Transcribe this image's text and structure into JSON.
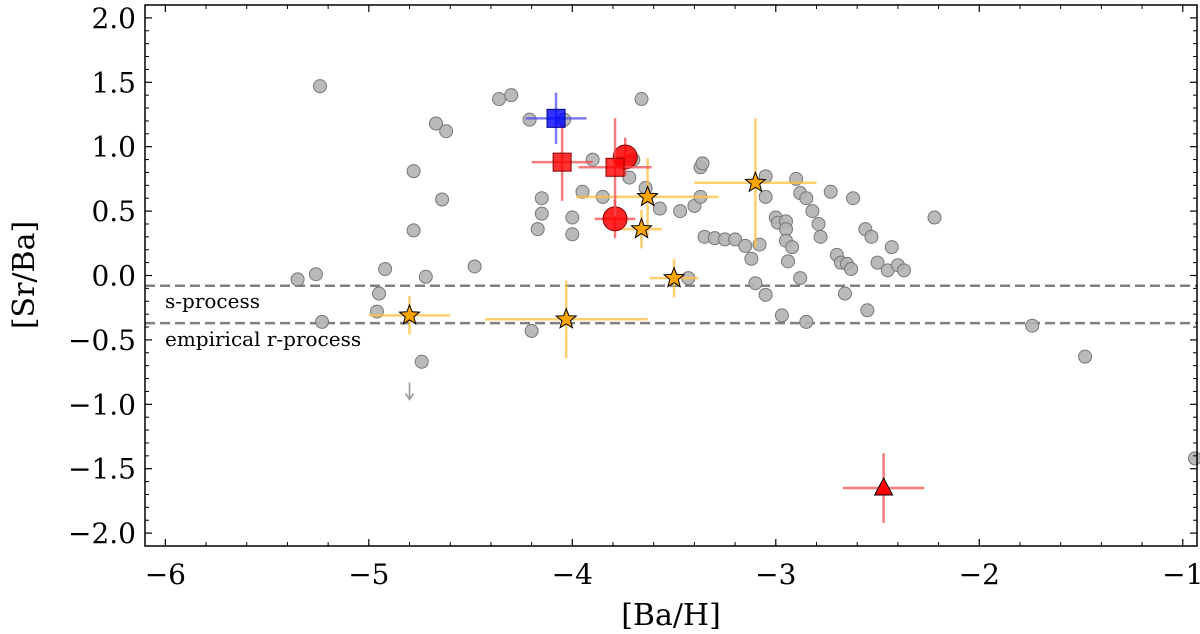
{
  "chart_data": {
    "type": "scatter",
    "xlabel": "[Ba/H]",
    "ylabel": "[Sr/Ba]",
    "xlim": [
      -6.1,
      -0.93
    ],
    "ylim": [
      -2.1,
      2.1
    ],
    "x_ticks": [
      -6,
      -5,
      -4,
      -3,
      -2,
      -1
    ],
    "x_tick_labels": [
      "−6",
      "−5",
      "−4",
      "−3",
      "−2",
      "−1"
    ],
    "y_ticks": [
      2.0,
      1.5,
      1.0,
      0.5,
      0.0,
      -0.5,
      -1.0,
      -1.5,
      -2.0
    ],
    "y_tick_labels": [
      "2.0",
      "1.5",
      "1.0",
      "0.5",
      "0.0",
      "−0.5",
      "−1.0",
      "−1.5",
      "−2.0"
    ],
    "reference_lines": [
      {
        "name": "s-process",
        "y": -0.08,
        "label": "s-process"
      },
      {
        "name": "empirical-r-process",
        "y": -0.37,
        "label": "empirical r-process"
      }
    ],
    "series": [
      {
        "name": "literature",
        "marker": "circle",
        "color": "#b3b3b3",
        "points": [
          [
            -5.24,
            1.47
          ],
          [
            -5.35,
            -0.03
          ],
          [
            -5.26,
            0.01
          ],
          [
            -5.23,
            -0.36
          ],
          [
            -4.92,
            0.05
          ],
          [
            -4.95,
            -0.14
          ],
          [
            -4.96,
            -0.28
          ],
          [
            -4.78,
            0.81
          ],
          [
            -4.78,
            0.35
          ],
          [
            -4.72,
            -0.01
          ],
          [
            -4.74,
            -0.67
          ],
          [
            -4.67,
            1.18
          ],
          [
            -4.64,
            0.59
          ],
          [
            -4.62,
            1.12
          ],
          [
            -4.48,
            0.07
          ],
          [
            -4.36,
            1.37
          ],
          [
            -4.3,
            1.4
          ],
          [
            -4.21,
            1.21
          ],
          [
            -4.17,
            0.36
          ],
          [
            -4.15,
            0.6
          ],
          [
            -4.15,
            0.48
          ],
          [
            -4.04,
            1.21
          ],
          [
            -4.0,
            0.45
          ],
          [
            -4.0,
            0.32
          ],
          [
            -3.95,
            0.65
          ],
          [
            -3.9,
            0.9
          ],
          [
            -3.85,
            0.61
          ],
          [
            -3.72,
            0.76
          ],
          [
            -3.66,
            1.37
          ],
          [
            -3.64,
            0.68
          ],
          [
            -3.57,
            0.52
          ],
          [
            -3.47,
            0.5
          ],
          [
            -3.43,
            -0.02
          ],
          [
            -3.4,
            0.54
          ],
          [
            -3.37,
            0.84
          ],
          [
            -3.37,
            0.61
          ],
          [
            -3.36,
            0.87
          ],
          [
            -3.35,
            0.3
          ],
          [
            -3.3,
            0.29
          ],
          [
            -3.25,
            0.28
          ],
          [
            -3.2,
            0.28
          ],
          [
            -3.15,
            0.23
          ],
          [
            -3.12,
            0.13
          ],
          [
            -3.08,
            0.24
          ],
          [
            -3.05,
            0.77
          ],
          [
            -3.05,
            0.61
          ],
          [
            -3.0,
            0.45
          ],
          [
            -2.99,
            0.41
          ],
          [
            -2.95,
            0.42
          ],
          [
            -2.95,
            0.36
          ],
          [
            -2.95,
            0.27
          ],
          [
            -2.94,
            0.11
          ],
          [
            -2.92,
            0.22
          ],
          [
            -2.9,
            0.75
          ],
          [
            -2.88,
            0.64
          ],
          [
            -2.85,
            0.6
          ],
          [
            -2.82,
            0.5
          ],
          [
            -2.79,
            0.4
          ],
          [
            -2.78,
            0.3
          ],
          [
            -2.73,
            0.65
          ],
          [
            -2.7,
            0.16
          ],
          [
            -2.68,
            0.1
          ],
          [
            -2.65,
            0.09
          ],
          [
            -2.62,
            0.6
          ],
          [
            -2.56,
            0.36
          ],
          [
            -2.55,
            -0.27
          ],
          [
            -2.53,
            0.3
          ],
          [
            -2.5,
            0.1
          ],
          [
            -2.45,
            0.04
          ],
          [
            -2.43,
            0.22
          ],
          [
            -2.4,
            0.08
          ],
          [
            -2.37,
            0.04
          ],
          [
            -2.22,
            0.45
          ],
          [
            -3.1,
            -0.06
          ],
          [
            -3.05,
            -0.15
          ],
          [
            -2.97,
            -0.31
          ],
          [
            -2.85,
            -0.36
          ],
          [
            -2.88,
            -0.02
          ],
          [
            -2.66,
            -0.14
          ],
          [
            -2.63,
            0.05
          ],
          [
            -3.7,
            0.9
          ],
          [
            -4.2,
            -0.43
          ],
          [
            -1.74,
            -0.39
          ],
          [
            -1.48,
            -0.63
          ],
          [
            -0.94,
            -1.42
          ]
        ]
      },
      {
        "name": "orange-stars",
        "marker": "star",
        "color": "#ffa500",
        "points": [
          {
            "x": -4.8,
            "y": -0.31,
            "xerr": 0.2,
            "yerr": 0.15
          },
          {
            "x": -4.03,
            "y": -0.34,
            "xerr": 0.4,
            "yerr": 0.3
          },
          {
            "x": -3.5,
            "y": -0.02,
            "xerr": 0.12,
            "yerr": 0.15
          },
          {
            "x": -3.63,
            "y": 0.61,
            "xerr": 0.35,
            "yerr": 0.3
          },
          {
            "x": -3.66,
            "y": 0.36,
            "xerr": 0.1,
            "yerr": 0.15
          },
          {
            "x": -3.1,
            "y": 0.72,
            "xerr": 0.3,
            "yerr": 0.5
          }
        ]
      },
      {
        "name": "red-circles",
        "marker": "circle",
        "color": "#ff0000",
        "points": [
          {
            "x": -3.74,
            "y": 0.92,
            "xerr": 0.05,
            "yerr": 0.15
          },
          {
            "x": -3.79,
            "y": 0.44,
            "xerr": 0.1,
            "yerr": 0.15
          }
        ]
      },
      {
        "name": "red-squares",
        "marker": "square",
        "color": "#ff0000",
        "points": [
          {
            "x": -4.05,
            "y": 0.88,
            "xerr": 0.15,
            "yerr": 0.3
          },
          {
            "x": -3.79,
            "y": 0.84,
            "xerr": 0.18,
            "yerr": 0.38
          }
        ]
      },
      {
        "name": "blue-square",
        "marker": "square",
        "color": "#0000ff",
        "points": [
          {
            "x": -4.08,
            "y": 1.22,
            "xerr": 0.15,
            "yerr": 0.2
          }
        ]
      },
      {
        "name": "red-triangle",
        "marker": "triangle",
        "color": "#ff0000",
        "points": [
          {
            "x": -2.47,
            "y": -1.65,
            "xerr": 0.2,
            "yerr": 0.27
          }
        ]
      }
    ],
    "upper_limits": [
      {
        "x": -4.8,
        "y": -0.9,
        "color": "#999999"
      }
    ],
    "colors": {
      "literature_fill": "#b3b3b3",
      "literature_stroke": "#777777",
      "orange": "#ffa500",
      "orange_err": "#ffbf40",
      "red": "#ff0000",
      "red_err": "#f05050",
      "blue": "#0000ff",
      "blue_err": "#5050f0",
      "ref_line": "#808080"
    }
  }
}
